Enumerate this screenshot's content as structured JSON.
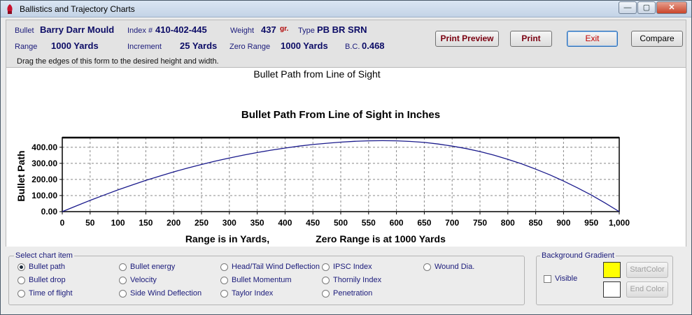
{
  "window": {
    "title": "Ballistics and Trajectory Charts",
    "buttons": {
      "minimize": "—",
      "maximize": "▢",
      "close": "✕"
    }
  },
  "header": {
    "bullet_label": "Bullet",
    "bullet_value": "Barry Darr Mould",
    "index_label": "Index #",
    "index_value": "410-402-445",
    "weight_label": "Weight",
    "weight_value": "437",
    "weight_unit": "gr.",
    "type_label": "Type",
    "type_value": "PB BR SRN",
    "range_label": "Range",
    "range_value": "1000 Yards",
    "increment_label": "Increment",
    "increment_value": "25 Yards",
    "zero_range_label": "Zero Range",
    "zero_range_value": "1000 Yards",
    "bc_label": "B.C.",
    "bc_value": "0.468",
    "hint": "Drag the edges of this form to the desired height and width."
  },
  "toolbar": {
    "print_preview": "Print Preview",
    "print": "Print",
    "exit": "Exit",
    "compare": "Compare"
  },
  "chart_caption": "Bullet Path from Line of Sight",
  "chart_data": {
    "type": "line",
    "title": "Bullet Path From Line of Sight in Inches",
    "ylabel": "Bullet Path",
    "xlabel": "Range is in Yards,",
    "xlabel2": "Zero Range is at 1000 Yards",
    "xlim": [
      0,
      1000
    ],
    "ylim": [
      0,
      460
    ],
    "x_ticks": [
      "0",
      "50",
      "100",
      "150",
      "200",
      "250",
      "300",
      "350",
      "400",
      "450",
      "500",
      "550",
      "600",
      "650",
      "700",
      "750",
      "800",
      "850",
      "900",
      "950",
      "1,000"
    ],
    "y_ticks": [
      "0.00",
      "100.00",
      "200.00",
      "300.00",
      "400.00"
    ],
    "grid": true,
    "line_color": "#1a1a8c",
    "series": [
      {
        "x": [
          0,
          25,
          50,
          75,
          100,
          125,
          150,
          175,
          200,
          225,
          250,
          275,
          300,
          325,
          350,
          375,
          400,
          425,
          450,
          475,
          500,
          525,
          550,
          575,
          600,
          625,
          650,
          675,
          700,
          725,
          750,
          775,
          800,
          825,
          850,
          875,
          900,
          925,
          950,
          975,
          1000
        ],
        "values": [
          0,
          35,
          70,
          103,
          135,
          165,
          194,
          221,
          247,
          271,
          293,
          314,
          333,
          351,
          367,
          382,
          395,
          407,
          417,
          425,
          432,
          437,
          440,
          441,
          440,
          436,
          430,
          420,
          407,
          392,
          373,
          351,
          325,
          297,
          264,
          229,
          190,
          148,
          103,
          53,
          0
        ]
      }
    ]
  },
  "select_panel": {
    "title": "Select chart item",
    "items": [
      {
        "label": "Bullet path",
        "selected": true
      },
      {
        "label": "Bullet drop",
        "selected": false
      },
      {
        "label": "Time of flight",
        "selected": false
      },
      {
        "label": "Bullet energy",
        "selected": false
      },
      {
        "label": "Velocity",
        "selected": false
      },
      {
        "label": "Side Wind Deflection",
        "selected": false
      },
      {
        "label": "Head/Tail Wind Deflection",
        "selected": false
      },
      {
        "label": "Bullet Momentum",
        "selected": false
      },
      {
        "label": "Taylor Index",
        "selected": false
      },
      {
        "label": "IPSC Index",
        "selected": false
      },
      {
        "label": "Thornily Index",
        "selected": false
      },
      {
        "label": "Penetration",
        "selected": false
      },
      {
        "label": "Wound Dia.",
        "selected": false
      }
    ]
  },
  "gradient_panel": {
    "title": "Background Gradient",
    "visible_label": "Visible",
    "visible_checked": false,
    "start_color_label": "StartColor",
    "end_color_label": "End Color",
    "start_color": "#ffff00",
    "end_color": "#ffffff"
  }
}
